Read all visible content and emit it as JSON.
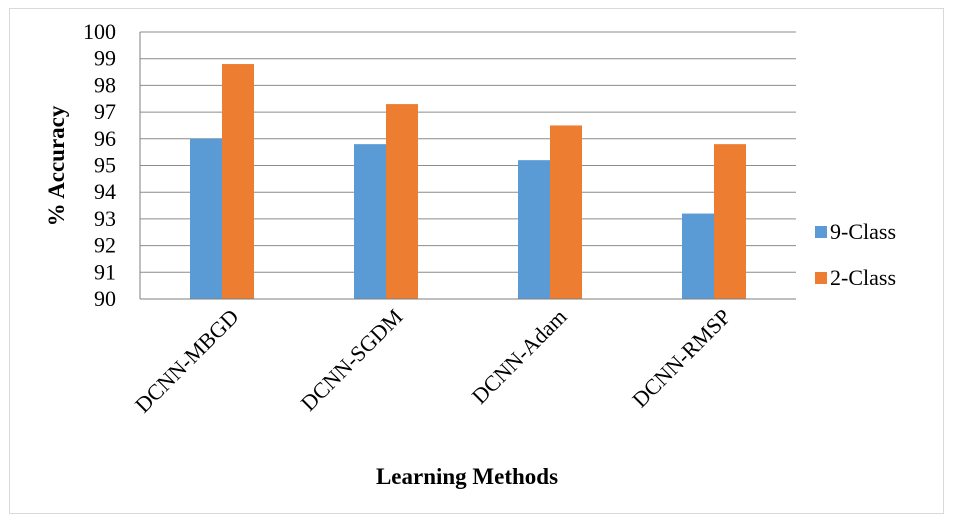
{
  "chart_data": {
    "type": "bar",
    "title": "",
    "xlabel": "Learning Methods",
    "ylabel": "% Accuracy",
    "categories": [
      "DCNN-MBGD",
      "DCNN-SGDM",
      "DCNN-Adam",
      "DCNN-RMSP"
    ],
    "series": [
      {
        "name": "9-Class",
        "values": [
          96.0,
          95.8,
          95.2,
          93.2
        ],
        "color": "#5b9bd5"
      },
      {
        "name": "2-Class",
        "values": [
          98.8,
          97.3,
          96.5,
          95.8
        ],
        "color": "#ed7d31"
      }
    ],
    "ylim": [
      90,
      100
    ],
    "yticks": [
      90,
      91,
      92,
      93,
      94,
      95,
      96,
      97,
      98,
      99,
      100
    ],
    "grid": true,
    "legend_position": "right"
  }
}
